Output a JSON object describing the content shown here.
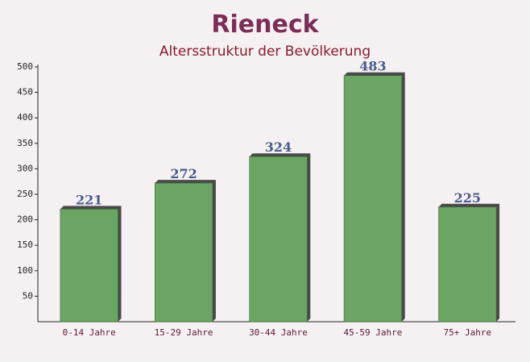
{
  "chart_data": {
    "type": "bar",
    "title": "Rieneck",
    "subtitle": "Altersstruktur der Bevölkerung",
    "categories": [
      "0-14 Jahre",
      "15-29 Jahre",
      "30-44 Jahre",
      "45-59 Jahre",
      "75+ Jahre"
    ],
    "values": [
      221,
      272,
      324,
      483,
      225
    ],
    "color": "#6aa563",
    "ylim": [
      0,
      500
    ],
    "yticks": [
      50,
      100,
      150,
      200,
      250,
      300,
      350,
      400,
      450,
      500
    ]
  }
}
